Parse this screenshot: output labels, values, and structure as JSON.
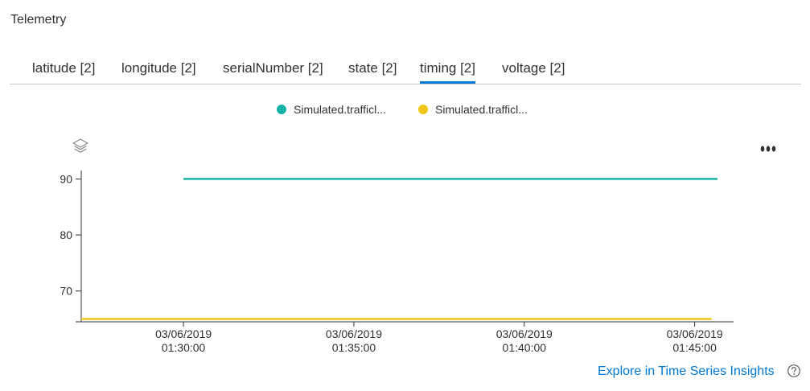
{
  "panel": {
    "title": "Telemetry"
  },
  "tabs": [
    {
      "label": "latitude [2]",
      "active": false
    },
    {
      "label": "longitude [2]",
      "active": false
    },
    {
      "label": "serialNumber [2]",
      "active": false
    },
    {
      "label": "state [2]",
      "active": false
    },
    {
      "label": "timing [2]",
      "active": true
    },
    {
      "label": "voltage [2]",
      "active": false
    }
  ],
  "icons": {
    "layers": "layers-icon",
    "more": "more-options-icon",
    "help": "help-circle-icon"
  },
  "colors": {
    "accent": "#0078d4",
    "series1": "#17b3a9",
    "series2": "#f0c419",
    "axis": "#323130"
  },
  "chart_data": {
    "type": "line",
    "legend": [
      "Simulated.trafficl...",
      "Simulated.trafficl..."
    ],
    "legend_position": "top-center",
    "grid": false,
    "ylim": [
      64.5,
      91.5
    ],
    "yticks": [
      70,
      80,
      90
    ],
    "xlim": [
      "2019-03-06T01:27:00",
      "2019-03-06T01:46:00"
    ],
    "xticks": [
      {
        "date": "03/06/2019",
        "time": "01:30:00"
      },
      {
        "date": "03/06/2019",
        "time": "01:35:00"
      },
      {
        "date": "03/06/2019",
        "time": "01:40:00"
      },
      {
        "date": "03/06/2019",
        "time": "01:45:00"
      }
    ],
    "series": [
      {
        "name": "Simulated.trafficl...",
        "color": "#17b3a9",
        "points": [
          {
            "x": "2019-03-06T01:30:00",
            "y": 90
          },
          {
            "x": "2019-03-06T01:45:40",
            "y": 90
          }
        ]
      },
      {
        "name": "Simulated.trafficl...",
        "color": "#f0c419",
        "points": [
          {
            "x": "2019-03-06T01:27:00",
            "y": 65
          },
          {
            "x": "2019-03-06T01:45:30",
            "y": 65
          }
        ]
      }
    ]
  },
  "footer": {
    "explore_link": "Explore in Time Series Insights"
  }
}
